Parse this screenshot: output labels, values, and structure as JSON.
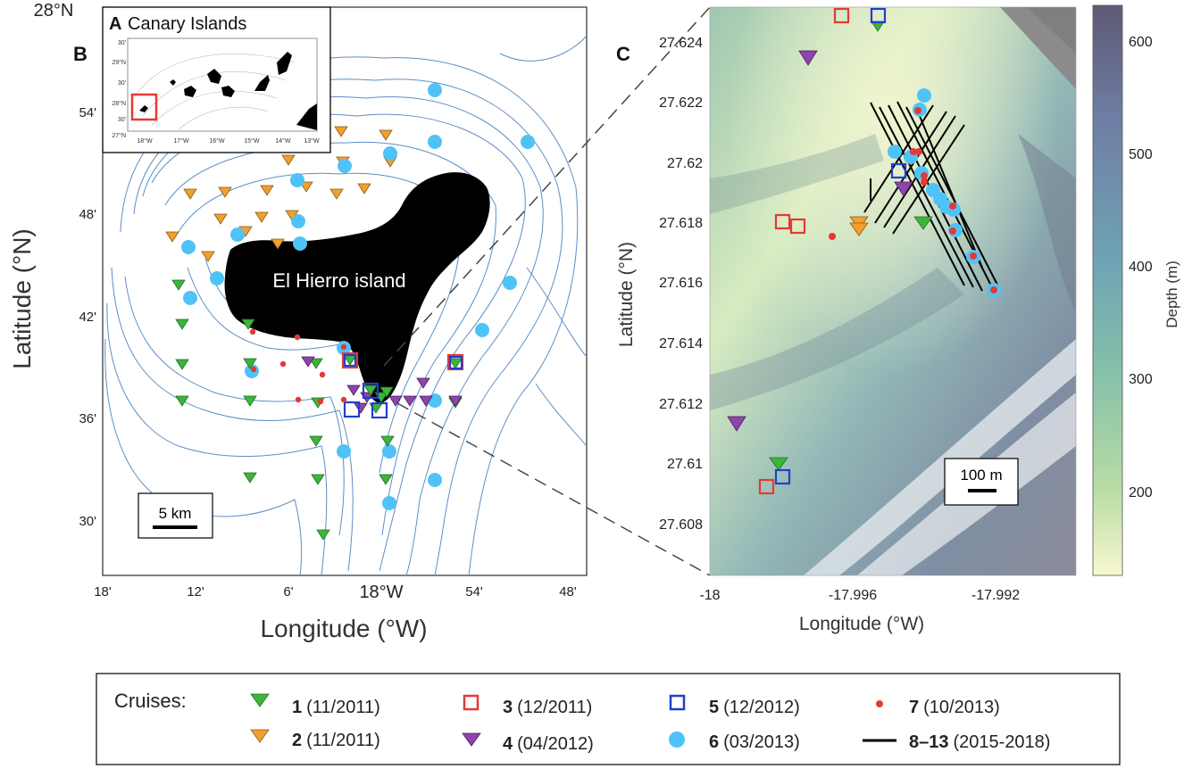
{
  "map_b": {
    "panel_letter": "B",
    "top_corner_label": "28°N",
    "island_label": "El Hierro island",
    "xlabel": "Longitude (°W)",
    "ylabel": "Latitude (°N)",
    "x_ticks": [
      "18'",
      "12'",
      "6'",
      "18°W",
      "54'",
      "48'"
    ],
    "y_ticks": [
      "54'",
      "48'",
      "42'",
      "36'",
      "30'"
    ],
    "scale_bar": "5 km",
    "land_color": "#000000",
    "contour_color": "#5b8fc7"
  },
  "inset_a": {
    "panel_letter": "A",
    "title": "Canary Islands",
    "x_ticks": [
      "18°W",
      "17°W",
      "16°W",
      "15°W",
      "14°W",
      "13°W"
    ],
    "y_ticks": [
      "29°N",
      "28°N",
      "27°N"
    ],
    "y_minor": [
      "30'",
      "30'",
      "30'"
    ],
    "highlight_color": "#e53935"
  },
  "map_c": {
    "panel_letter": "C",
    "xlabel": "Longitude (°W)",
    "ylabel": "Latitude (°N)",
    "x_ticks": [
      "-18",
      "-17.996",
      "-17.992"
    ],
    "y_ticks": [
      "27.624",
      "27.622",
      "27.62",
      "27.618",
      "27.616",
      "27.614",
      "27.612",
      "27.61",
      "27.608"
    ],
    "scale_bar": "100 m",
    "colorbar": {
      "label": "Depth (m)",
      "ticks": [
        "600",
        "500",
        "400",
        "300",
        "200"
      ],
      "colors": [
        "#5e5a76",
        "#6f7ea4",
        "#6fa3b5",
        "#86c1a8",
        "#b9dca4",
        "#f7f8cf"
      ]
    }
  },
  "legend": {
    "title": "Cruises:",
    "items": [
      {
        "num": "1",
        "date": "(11/2011)",
        "symbol": "triangle-down",
        "color": "#3db53d"
      },
      {
        "num": "2",
        "date": "(11/2011)",
        "symbol": "triangle-down",
        "color": "#f0a030"
      },
      {
        "num": "3",
        "date": "(12/2011)",
        "symbol": "open-square",
        "color": "#e53935"
      },
      {
        "num": "4",
        "date": "(04/2012)",
        "symbol": "triangle-down",
        "color": "#8e44ad"
      },
      {
        "num": "5",
        "date": "(12/2012)",
        "symbol": "open-square",
        "color": "#1f3fd1"
      },
      {
        "num": "6",
        "date": "(03/2013)",
        "symbol": "circle",
        "color": "#4fc3f7"
      },
      {
        "num": "7",
        "date": "(10/2013)",
        "symbol": "dot",
        "color": "#e53935"
      },
      {
        "num": "8–13",
        "date": "(2015-2018)",
        "symbol": "line",
        "color": "#000000"
      }
    ]
  }
}
